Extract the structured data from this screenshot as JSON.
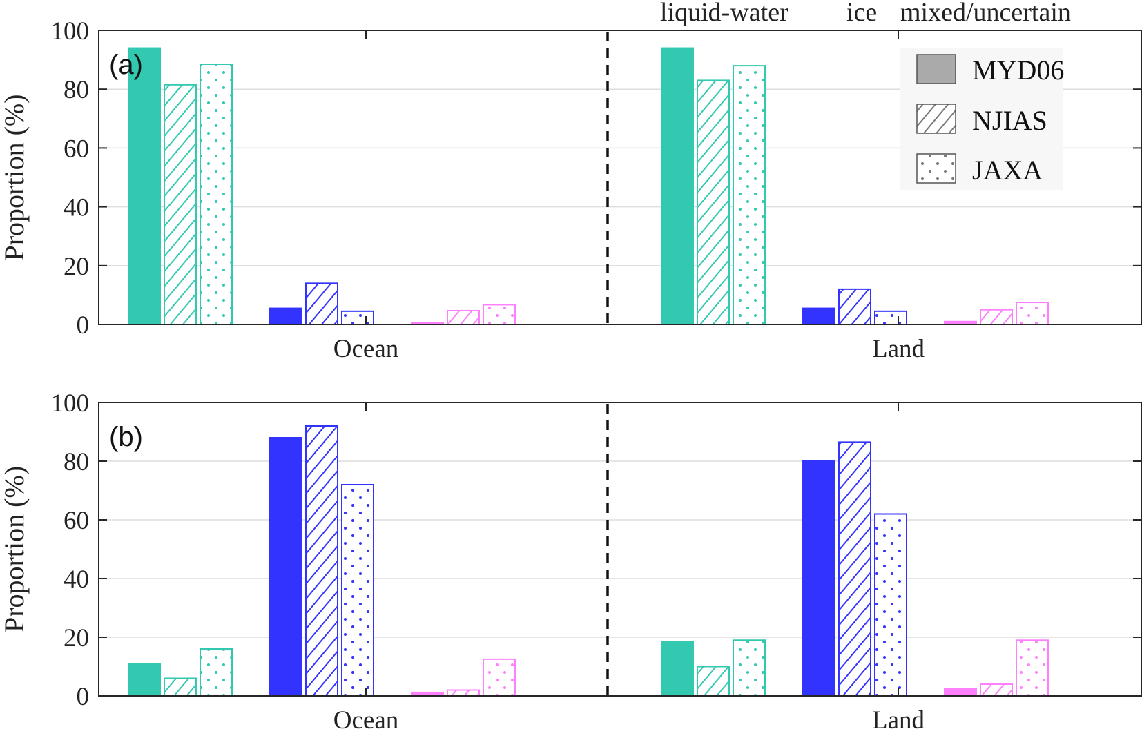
{
  "colors": {
    "liquid": "#33c9b0",
    "ice": "#3333ff",
    "mixed": "#ff80ff",
    "legend_fill": "#aaaaaa",
    "legend_pattern": "#777777"
  },
  "top_legend": {
    "liquid": "liquid-water",
    "ice": "ice",
    "mixed": "mixed/uncertain"
  },
  "chart_data": [
    {
      "type": "bar",
      "panel": "(a)",
      "categories": [
        "Ocean",
        "Land"
      ],
      "ylabel": "Proportion (%)",
      "ylim": [
        0,
        100
      ],
      "yticks": [
        0,
        20,
        40,
        60,
        80,
        100
      ],
      "grid": true,
      "legend_placement": "top-right",
      "series": [
        {
          "name": "liquid-water",
          "color_key": "liquid",
          "values": {
            "MYD06": [
              94,
              94
            ],
            "NJIAS": [
              81.5,
              83
            ],
            "JAXA": [
              88.5,
              88
            ]
          }
        },
        {
          "name": "ice",
          "color_key": "ice",
          "values": {
            "MYD06": [
              5.5,
              5.5
            ],
            "NJIAS": [
              14,
              12
            ],
            "JAXA": [
              4.5,
              4.5
            ]
          }
        },
        {
          "name": "mixed/uncertain",
          "color_key": "mixed",
          "values": {
            "MYD06": [
              0.7,
              1.0
            ],
            "NJIAS": [
              4.7,
              5
            ],
            "JAXA": [
              6.7,
              7.5
            ]
          }
        }
      ]
    },
    {
      "type": "bar",
      "panel": "(b)",
      "categories": [
        "Ocean",
        "Land"
      ],
      "ylabel": "Proportion (%)",
      "ylim": [
        0,
        100
      ],
      "yticks": [
        0,
        20,
        40,
        60,
        80,
        100
      ],
      "grid": true,
      "series": [
        {
          "name": "liquid-water",
          "color_key": "liquid",
          "values": {
            "MYD06": [
              11,
              18.5
            ],
            "NJIAS": [
              6,
              10
            ],
            "JAXA": [
              16,
              19
            ]
          }
        },
        {
          "name": "ice",
          "color_key": "ice",
          "values": {
            "MYD06": [
              88,
              80
            ],
            "NJIAS": [
              92,
              86.5
            ],
            "JAXA": [
              72,
              62
            ]
          }
        },
        {
          "name": "mixed/uncertain",
          "color_key": "mixed",
          "values": {
            "MYD06": [
              1.2,
              2.5
            ],
            "NJIAS": [
              2,
              4
            ],
            "JAXA": [
              12.5,
              19
            ]
          }
        }
      ]
    }
  ],
  "products": [
    {
      "name": "MYD06",
      "style": "solid"
    },
    {
      "name": "NJIAS",
      "style": "hatch"
    },
    {
      "name": "JAXA",
      "style": "dots"
    }
  ]
}
